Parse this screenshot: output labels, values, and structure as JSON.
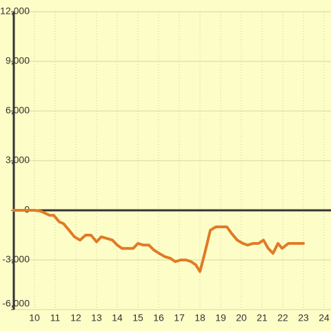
{
  "chart_data": {
    "type": "line",
    "x": [
      9,
      10,
      10.3,
      10.73,
      10.93,
      11.2,
      11.4,
      11.67,
      11.93,
      12.2,
      12.47,
      12.73,
      13.0,
      13.23,
      13.5,
      13.77,
      14.0,
      14.23,
      14.5,
      14.77,
      15.0,
      15.27,
      15.53,
      15.77,
      16.03,
      16.3,
      16.57,
      16.8,
      17.07,
      17.33,
      17.57,
      17.8,
      18.0,
      18.23,
      18.5,
      18.77,
      19.03,
      19.3,
      19.53,
      19.8,
      20.07,
      20.3,
      20.57,
      20.83,
      21.07,
      21.3,
      21.53,
      21.77,
      21.97,
      22.27,
      22.5,
      23.0
    ],
    "series": [
      {
        "color": "#e07b25",
        "values": [
          0,
          0,
          -50,
          -300,
          -300,
          -700,
          -800,
          -1200,
          -1600,
          -1800,
          -1500,
          -1500,
          -1900,
          -1600,
          -1700,
          -1800,
          -2100,
          -2300,
          -2300,
          -2300,
          -2000,
          -2100,
          -2100,
          -2400,
          -2600,
          -2800,
          -2900,
          -3100,
          -3000,
          -3000,
          -3100,
          -3300,
          -3700,
          -2600,
          -1200,
          -1000,
          -1000,
          -1000,
          -1400,
          -1800,
          -2000,
          -2100,
          -2000,
          -2000,
          -1800,
          -2300,
          -2600,
          -2000,
          -2300,
          -2000,
          -2000,
          -2000
        ]
      }
    ],
    "xlim": [
      9,
      24.3
    ],
    "xticks": [
      10,
      11,
      12,
      13,
      14,
      15,
      16,
      17,
      18,
      19,
      20,
      21,
      22,
      23,
      24
    ],
    "ylim": [
      -6000,
      12000
    ],
    "yticks": [
      {
        "value": -6000,
        "label": "-6,000"
      },
      {
        "value": -3000,
        "label": "-3,000"
      },
      0,
      {
        "value": 3000,
        "label": "3,000"
      },
      {
        "value": 6000,
        "label": "6,000"
      },
      {
        "value": 9000,
        "label": "9,000"
      },
      {
        "value": 12000,
        "label": "12,000"
      }
    ],
    "grid": true
  }
}
